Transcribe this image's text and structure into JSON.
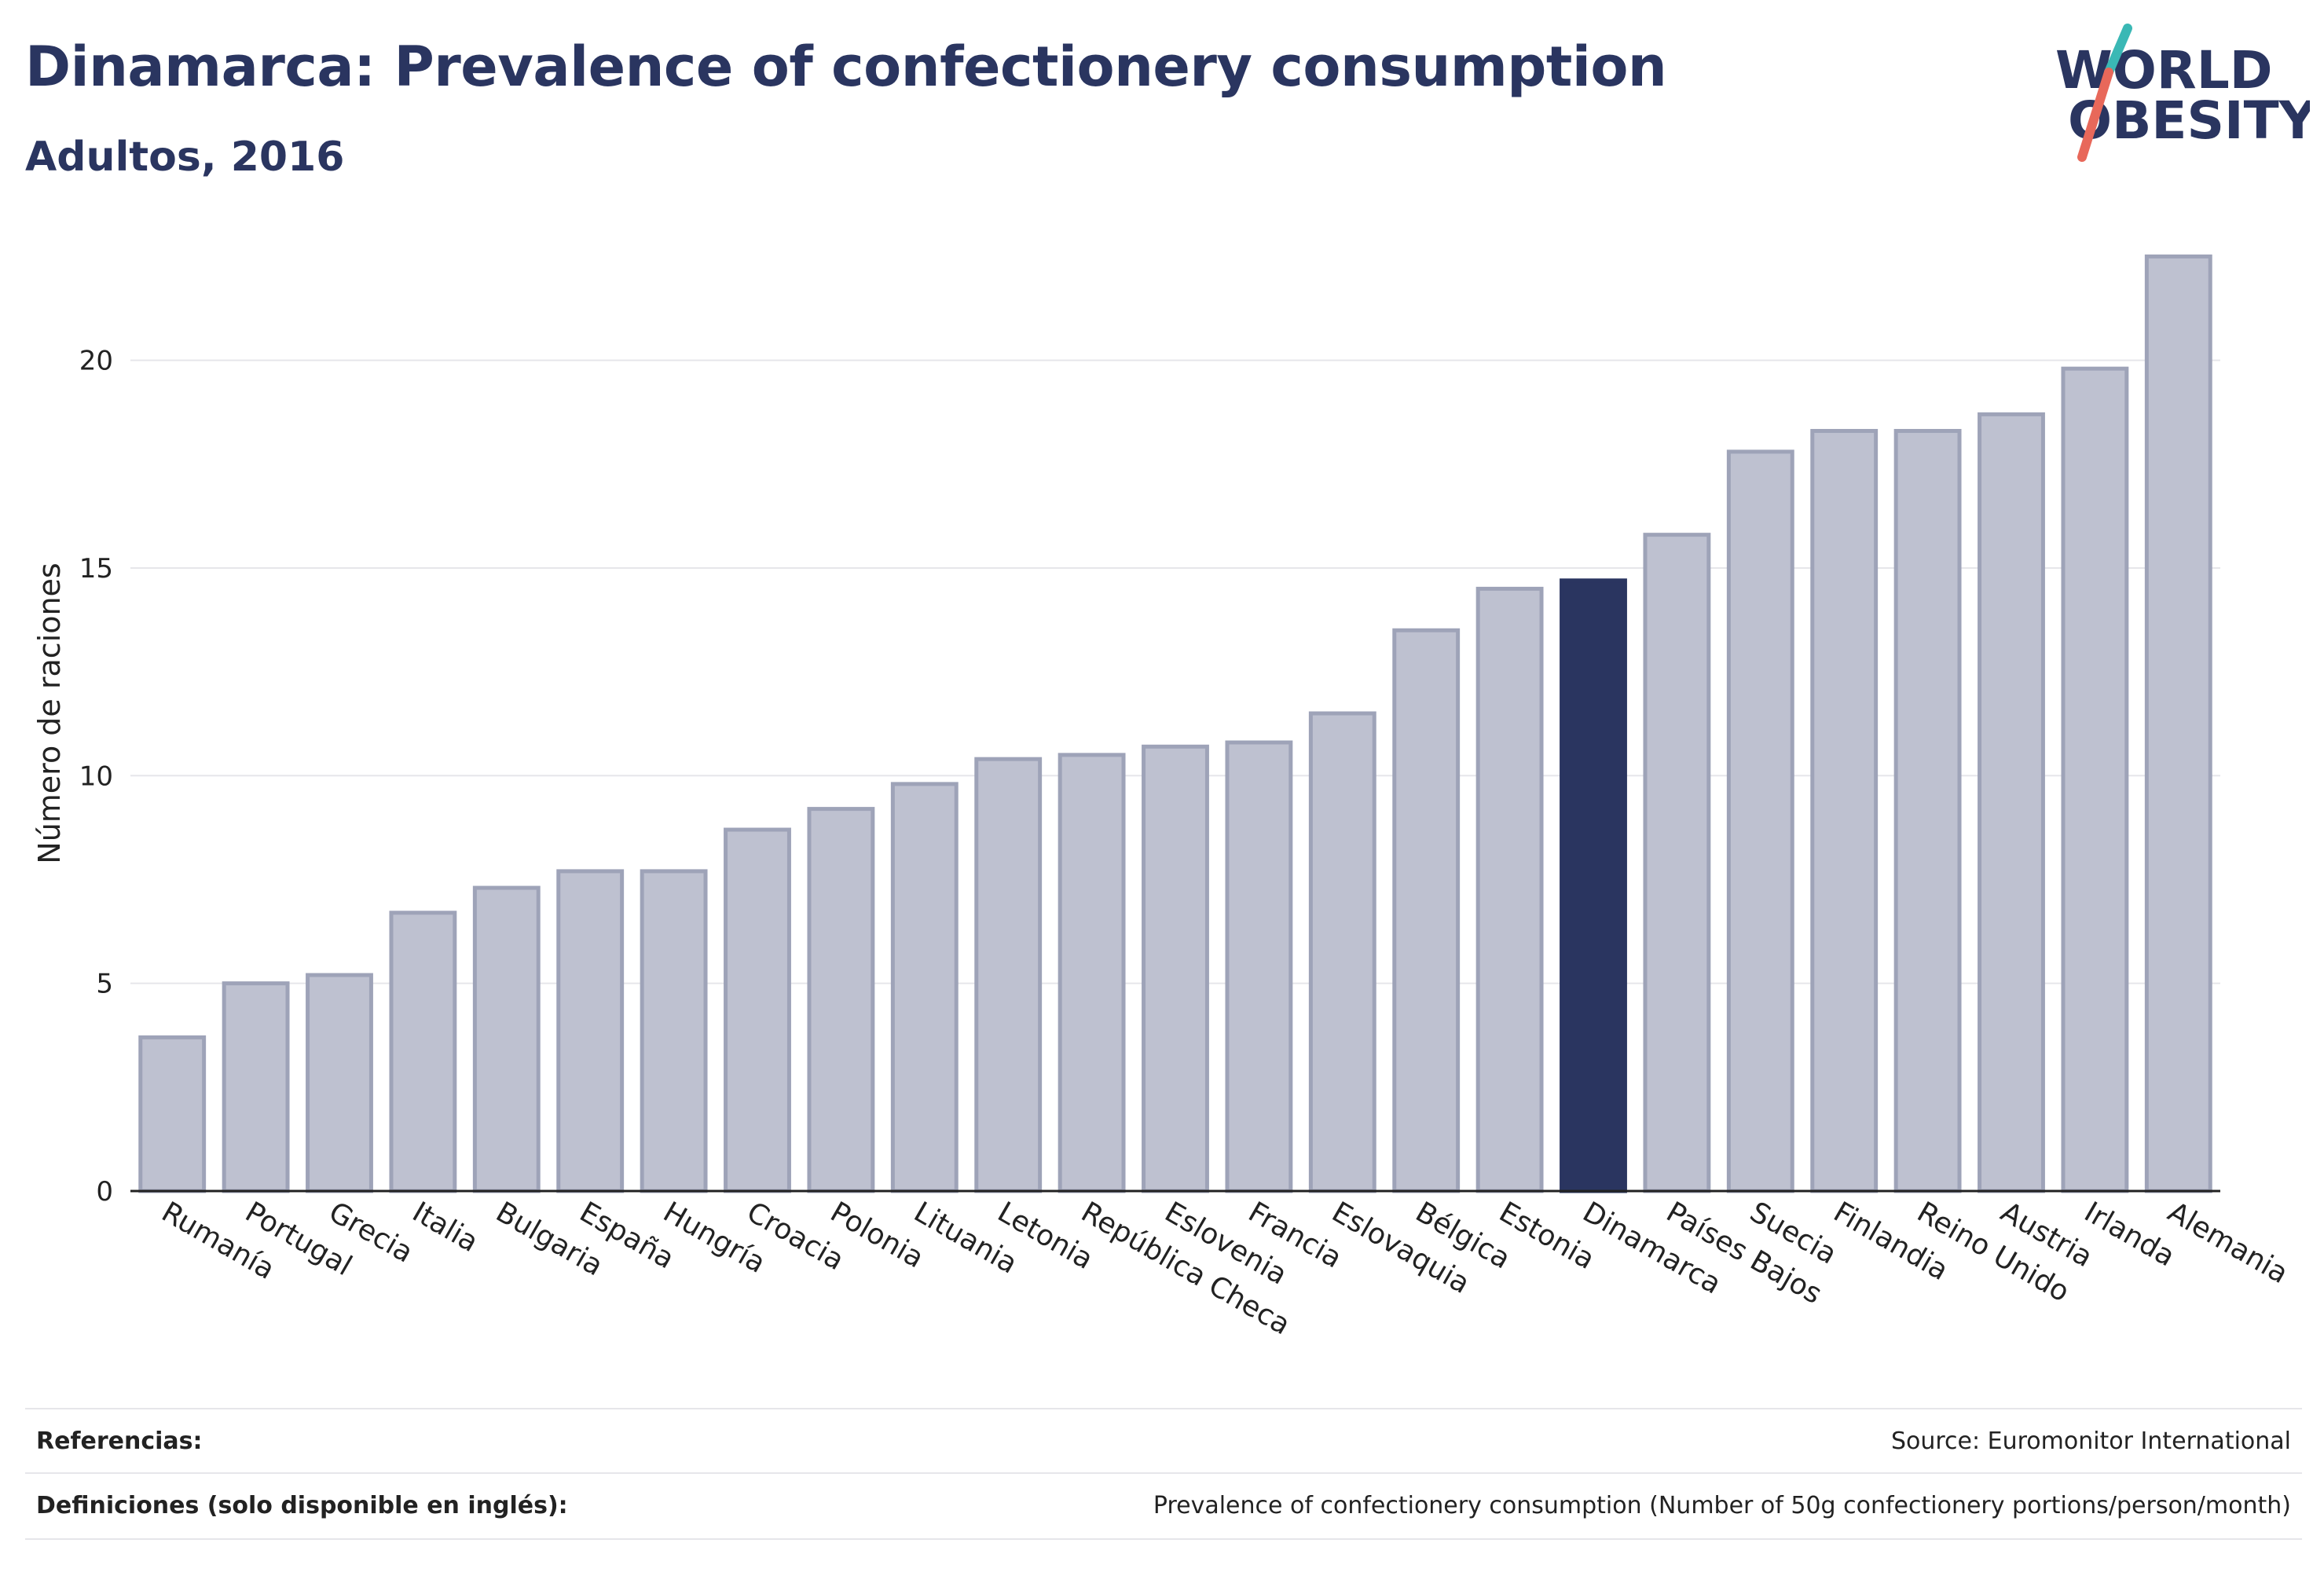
{
  "header": {
    "title": "Dinamarca: Prevalence of confectionery consumption",
    "subtitle": "Adultos, 2016"
  },
  "logo": {
    "line1": "WORLD",
    "line2": "OBESITY",
    "colors": {
      "text": "#2a3560",
      "slash_top": "#3ab8b5",
      "slash_bottom": "#e8685a"
    }
  },
  "chart_data": {
    "type": "bar",
    "ylabel": "Número de raciones",
    "xlabel": "",
    "ylim": [
      0,
      23
    ],
    "yticks": [
      0,
      5,
      10,
      15,
      20
    ],
    "grid": true,
    "highlight": "Dinamarca",
    "colors": {
      "bar": "#bec1d0",
      "bar_edge": "#9ea3b8",
      "highlight": "#2a3560",
      "grid": "#e6e6ea",
      "axis": "#222222"
    },
    "categories": [
      "Rumanía",
      "Portugal",
      "Grecia",
      "Italia",
      "Bulgaria",
      "España",
      "Hungría",
      "Croacia",
      "Polonia",
      "Lituania",
      "Letonia",
      "República Checa",
      "Eslovenia",
      "Francia",
      "Eslovaquia",
      "Bélgica",
      "Estonia",
      "Dinamarca",
      "Países Bajos",
      "Suecia",
      "Finlandia",
      "Reino Unido",
      "Austria",
      "Irlanda",
      "Alemania"
    ],
    "values": [
      3.7,
      5.0,
      5.2,
      6.7,
      7.3,
      7.7,
      7.7,
      8.7,
      9.2,
      9.8,
      10.4,
      10.5,
      10.7,
      10.8,
      11.5,
      13.5,
      14.5,
      14.7,
      15.8,
      17.8,
      18.3,
      18.3,
      18.7,
      19.8,
      22.5
    ]
  },
  "footer": {
    "references_label": "Referencias:",
    "references_value": "Source: Euromonitor International",
    "definitions_label": "Definiciones (solo disponible en inglés):",
    "definitions_value": "Prevalence of confectionery consumption (Number of 50g confectionery portions/person/month)"
  }
}
